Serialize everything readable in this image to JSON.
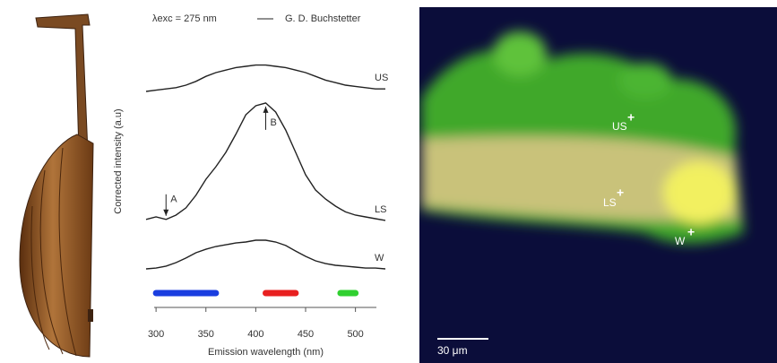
{
  "chart_data": {
    "type": "line",
    "annotation": "λexc = 275 nm",
    "legend": "G. D. Buchstetter",
    "xlabel": "Emission wavelength (nm)",
    "ylabel": "Corrected intensity (a.u)",
    "x": [
      290,
      300,
      310,
      320,
      330,
      340,
      350,
      360,
      370,
      380,
      390,
      400,
      410,
      420,
      430,
      440,
      450,
      460,
      470,
      480,
      490,
      500,
      510,
      520,
      530
    ],
    "series": [
      {
        "name": "US",
        "color": "#222222",
        "values": [
          85,
          85.5,
          86,
          86.5,
          87.5,
          89,
          91,
          92.5,
          93.5,
          94.5,
          95,
          95.5,
          95.5,
          95,
          94.5,
          93.5,
          92.5,
          91,
          89.5,
          88.5,
          87.5,
          87,
          86.5,
          86,
          86
        ]
      },
      {
        "name": "LS",
        "color": "#222222",
        "values": [
          34,
          35,
          34,
          35.7,
          38.6,
          43.6,
          50,
          55,
          60.7,
          67.9,
          75.7,
          79.3,
          80.4,
          76.8,
          69.6,
          60.7,
          51.8,
          45.7,
          42.1,
          39.3,
          37,
          35.7,
          35,
          34.3,
          33.6
        ]
      },
      {
        "name": "W",
        "color": "#222222",
        "values": [
          14.3,
          14.6,
          15.4,
          16.8,
          18.6,
          20.7,
          22.1,
          23.2,
          23.9,
          24.6,
          25,
          25.7,
          25.7,
          25,
          23.6,
          21.4,
          19.3,
          17.5,
          16.4,
          15.7,
          15.4,
          15,
          14.6,
          14.6,
          14.3
        ]
      }
    ],
    "markers": [
      {
        "label": "A",
        "x": 310
      },
      {
        "label": "B",
        "x": 410
      }
    ],
    "bands": [
      {
        "start": 300,
        "end": 360,
        "color": "#1a3ee0"
      },
      {
        "start": 410,
        "end": 440,
        "color": "#e82020"
      },
      {
        "start": 485,
        "end": 500,
        "color": "#30d030"
      }
    ],
    "xlim": [
      290,
      530
    ],
    "xticks": [
      300,
      350,
      400,
      450,
      500
    ],
    "ylim": [
      0,
      100
    ]
  },
  "micrograph": {
    "sites": [
      "US",
      "LS",
      "W"
    ],
    "scale_bar": "30 μm"
  }
}
